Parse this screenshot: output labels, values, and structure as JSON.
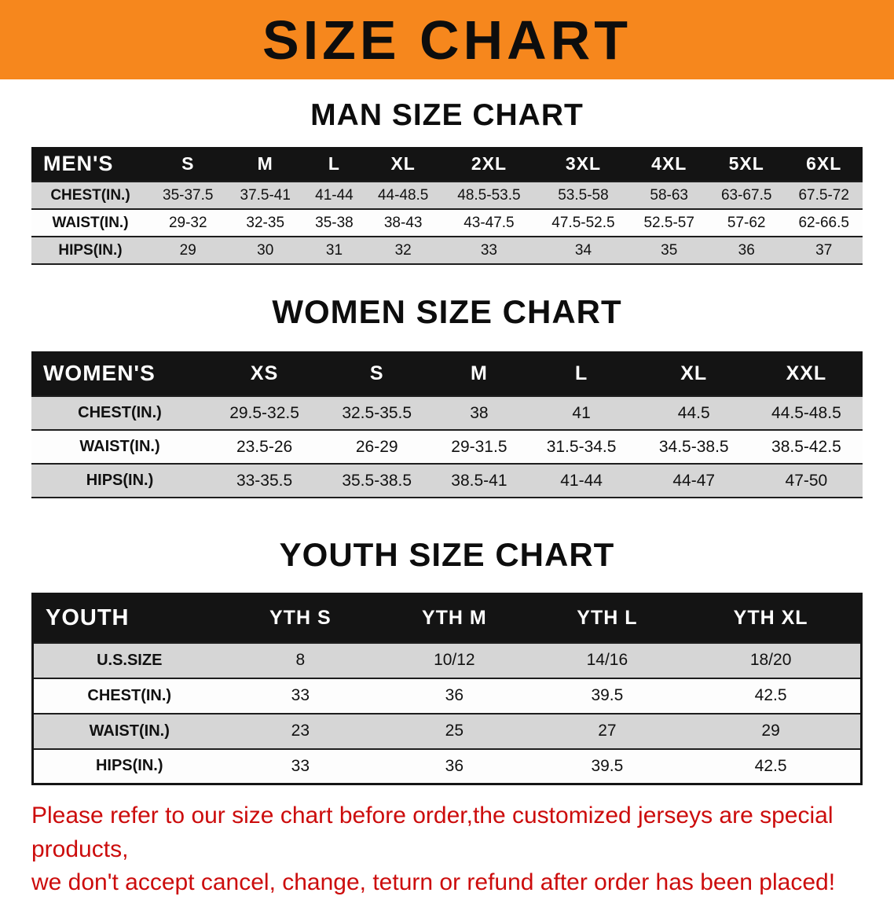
{
  "banner": {
    "title": "SIZE CHART"
  },
  "colors": {
    "banner_orange": "#f6871d",
    "header_black": "#141414",
    "shaded_row_gray": "#d6d6d6",
    "disclaimer_red": "#cc0c0c"
  },
  "sections": [
    {
      "heading": "MAN SIZE CHART",
      "table": {
        "header": [
          "MEN'S",
          "S",
          "M",
          "L",
          "XL",
          "2XL",
          "3XL",
          "4XL",
          "5XL",
          "6XL"
        ],
        "rows": [
          {
            "label": "CHEST(IN.)",
            "shaded": true,
            "values": [
              "35-37.5",
              "37.5-41",
              "41-44",
              "44-48.5",
              "48.5-53.5",
              "53.5-58",
              "58-63",
              "63-67.5",
              "67.5-72"
            ]
          },
          {
            "label": "WAIST(IN.)",
            "shaded": false,
            "values": [
              "29-32",
              "32-35",
              "35-38",
              "38-43",
              "43-47.5",
              "47.5-52.5",
              "52.5-57",
              "57-62",
              "62-66.5"
            ]
          },
          {
            "label": "HIPS(IN.)",
            "shaded": true,
            "values": [
              "29",
              "30",
              "31",
              "32",
              "33",
              "34",
              "35",
              "36",
              "37"
            ]
          }
        ]
      }
    },
    {
      "heading": "WOMEN SIZE CHART",
      "table": {
        "header": [
          "WOMEN'S",
          "XS",
          "S",
          "M",
          "L",
          "XL",
          "XXL"
        ],
        "rows": [
          {
            "label": "CHEST(IN.)",
            "shaded": true,
            "values": [
              "29.5-32.5",
              "32.5-35.5",
              "38",
              "41",
              "44.5",
              "44.5-48.5"
            ]
          },
          {
            "label": "WAIST(IN.)",
            "shaded": false,
            "values": [
              "23.5-26",
              "26-29",
              "29-31.5",
              "31.5-34.5",
              "34.5-38.5",
              "38.5-42.5"
            ]
          },
          {
            "label": "HIPS(IN.)",
            "shaded": true,
            "values": [
              "33-35.5",
              "35.5-38.5",
              "38.5-41",
              "41-44",
              "44-47",
              "47-50"
            ]
          }
        ]
      }
    },
    {
      "heading": "YOUTH SIZE CHART",
      "table": {
        "header": [
          "YOUTH",
          "YTH S",
          "YTH M",
          "YTH L",
          "YTH XL"
        ],
        "rows": [
          {
            "label": "U.S.SIZE",
            "shaded": true,
            "values": [
              "8",
              "10/12",
              "14/16",
              "18/20"
            ]
          },
          {
            "label": "CHEST(IN.)",
            "shaded": false,
            "values": [
              "33",
              "36",
              "39.5",
              "42.5"
            ]
          },
          {
            "label": "WAIST(IN.)",
            "shaded": true,
            "values": [
              "23",
              "25",
              "27",
              "29"
            ]
          },
          {
            "label": "HIPS(IN.)",
            "shaded": false,
            "values": [
              "33",
              "36",
              "39.5",
              "42.5"
            ]
          }
        ]
      }
    }
  ],
  "footer": {
    "line1": "Please refer to our size chart before order,the customized jerseys are special products,",
    "line2": "we don't accept cancel, change, teturn or refund after order has been placed!"
  }
}
